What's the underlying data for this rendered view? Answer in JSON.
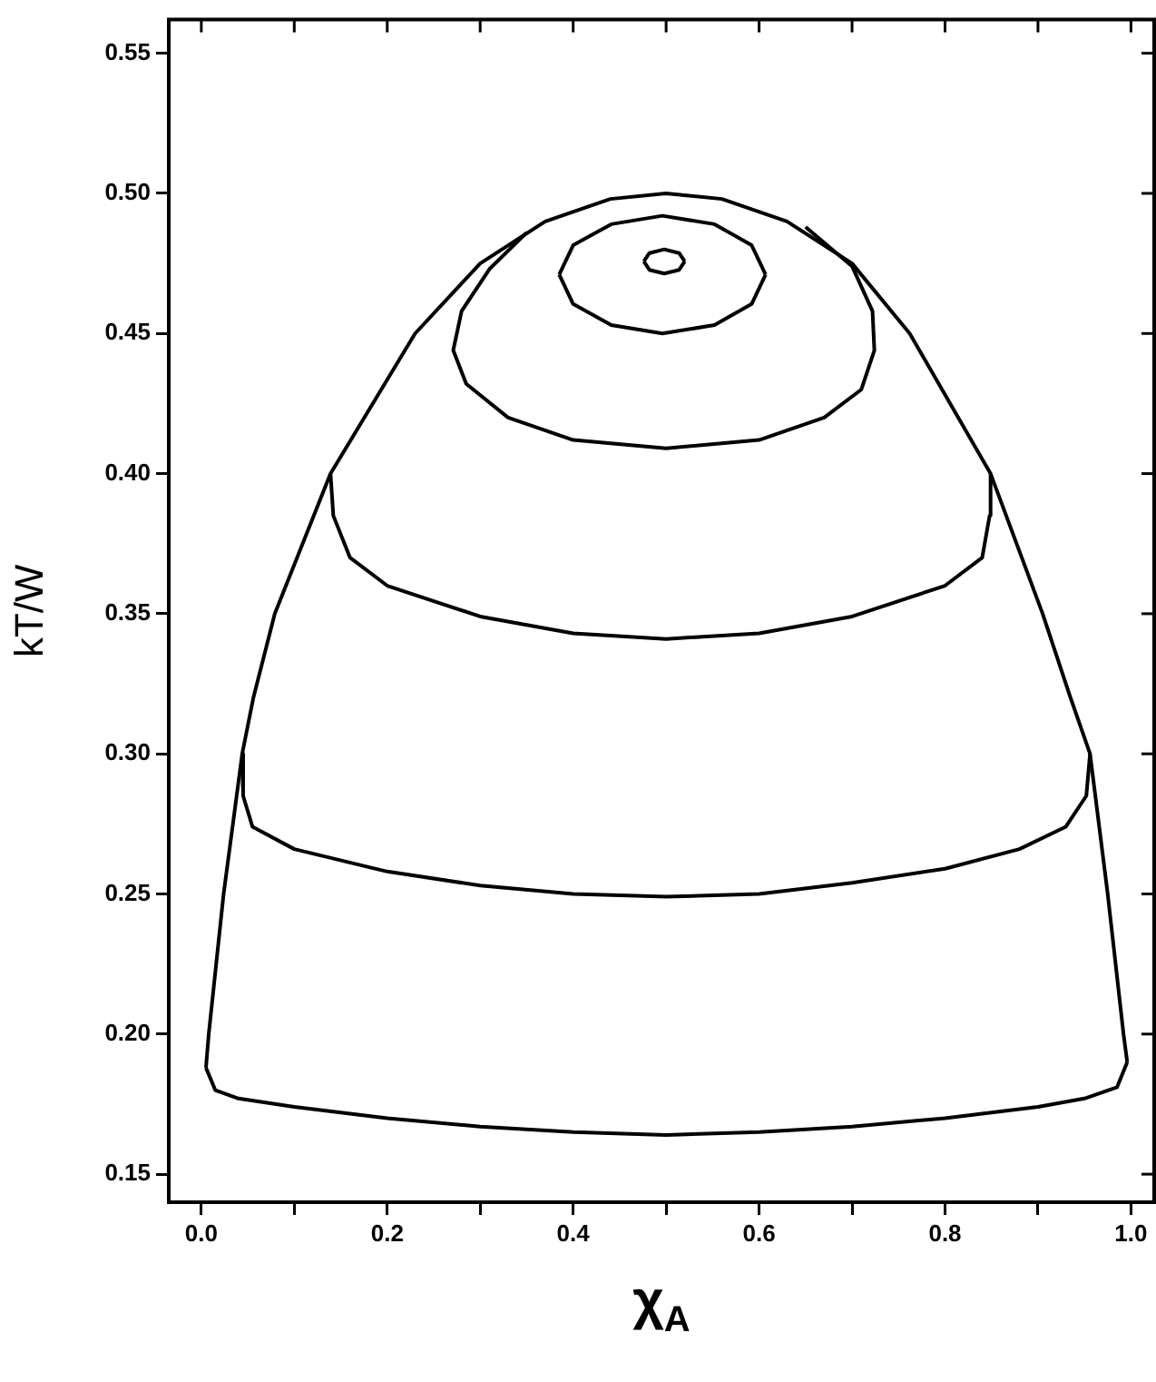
{
  "chart_data": {
    "type": "line",
    "xlabel": "χ$_{A}$",
    "ylabel": "kT/W",
    "xlim": [
      -0.035,
      1.025
    ],
    "ylim": [
      0.14,
      0.562
    ],
    "xticks": [
      {
        "value": 0,
        "label": "0.0"
      },
      {
        "value": 0.1,
        "label": null
      },
      {
        "value": 0.2,
        "label": "0.2"
      },
      {
        "value": 0.3,
        "label": null
      },
      {
        "value": 0.4,
        "label": "0.4"
      },
      {
        "value": 0.5,
        "label": null
      },
      {
        "value": 0.6,
        "label": "0.6"
      },
      {
        "value": 0.7,
        "label": null
      },
      {
        "value": 0.8,
        "label": "0.8"
      },
      {
        "value": 0.9,
        "label": null
      },
      {
        "value": 1,
        "label": "1.0"
      }
    ],
    "yticks": [
      0.15,
      {
        "value": 0.2,
        "label": "0.20"
      },
      0.25,
      {
        "value": 0.3,
        "label": "0.30"
      },
      0.35,
      {
        "value": 0.4,
        "label": "0.40"
      },
      0.45,
      {
        "value": 0.5,
        "label": "0.50"
      },
      0.55
    ],
    "grid": false,
    "legend": false,
    "marker": "none",
    "line_style": "solid",
    "series": [
      {
        "color": "#000000",
        "x": [
          0.005,
          0.008,
          0.024,
          0.044,
          0.056,
          0.079,
          0.139,
          0.23,
          0.3,
          0.37,
          0.44,
          0.5,
          0.56,
          0.63,
          0.7,
          0.762,
          0.849,
          0.905,
          0.935,
          0.956,
          0.975,
          0.992,
          0.996
        ],
        "values": [
          0.188,
          0.2,
          0.25,
          0.3,
          0.32,
          0.35,
          0.4,
          0.45,
          0.475,
          0.49,
          0.498,
          0.5,
          0.498,
          0.49,
          0.475,
          0.45,
          0.4,
          0.35,
          0.32,
          0.3,
          0.25,
          0.2,
          0.19
        ]
      },
      {
        "color": "#000000",
        "x": [
          0.005,
          0.015,
          0.04,
          0.1,
          0.2,
          0.3,
          0.4,
          0.5,
          0.6,
          0.7,
          0.8,
          0.9,
          0.95,
          0.985,
          0.996
        ],
        "values": [
          0.188,
          0.18,
          0.177,
          0.174,
          0.17,
          0.167,
          0.165,
          0.164,
          0.165,
          0.167,
          0.17,
          0.174,
          0.177,
          0.181,
          0.19
        ]
      },
      {
        "color": "#000000",
        "x": [
          0.044,
          0.045,
          0.055,
          0.1,
          0.2,
          0.3,
          0.4,
          0.5,
          0.6,
          0.7,
          0.8,
          0.88,
          0.93,
          0.952,
          0.956
        ],
        "values": [
          0.3,
          0.285,
          0.274,
          0.266,
          0.258,
          0.253,
          0.25,
          0.249,
          0.25,
          0.254,
          0.259,
          0.266,
          0.274,
          0.285,
          0.3
        ]
      },
      {
        "color": "#000000",
        "x": [
          0.139,
          0.142,
          0.16,
          0.2,
          0.3,
          0.4,
          0.5,
          0.6,
          0.7,
          0.8,
          0.84,
          0.848,
          0.849
        ],
        "values": [
          0.4,
          0.385,
          0.37,
          0.36,
          0.349,
          0.343,
          0.341,
          0.343,
          0.349,
          0.36,
          0.37,
          0.385,
          0.4
        ]
      },
      {
        "color": "#000000",
        "x": [
          0.35,
          0.31,
          0.28,
          0.271,
          0.285,
          0.33,
          0.4,
          0.5,
          0.6,
          0.67,
          0.71,
          0.724,
          0.722,
          0.7,
          0.65
        ],
        "values": [
          0.486,
          0.473,
          0.458,
          0.444,
          0.432,
          0.42,
          0.412,
          0.409,
          0.412,
          0.42,
          0.43,
          0.444,
          0.458,
          0.474,
          0.488
        ]
      },
      {
        "color": "#000000",
        "x": [
          0.385,
          0.4,
          0.441,
          0.496,
          0.552,
          0.592,
          0.607
        ],
        "values": [
          0.471,
          0.4815,
          0.489,
          0.492,
          0.489,
          0.4815,
          0.471
        ]
      },
      {
        "color": "#000000",
        "x": [
          0.385,
          0.4,
          0.441,
          0.496,
          0.552,
          0.592,
          0.607
        ],
        "values": [
          0.471,
          0.4605,
          0.453,
          0.45,
          0.453,
          0.4605,
          0.471
        ]
      },
      {
        "color": "#000000",
        "x": [
          0.476,
          0.482,
          0.498,
          0.514,
          0.52
        ],
        "values": [
          0.4757,
          0.4787,
          0.48,
          0.4787,
          0.4757
        ]
      },
      {
        "color": "#000000",
        "x": [
          0.476,
          0.482,
          0.498,
          0.514,
          0.52
        ],
        "values": [
          0.4757,
          0.4727,
          0.4714,
          0.4727,
          0.4757
        ]
      }
    ]
  }
}
